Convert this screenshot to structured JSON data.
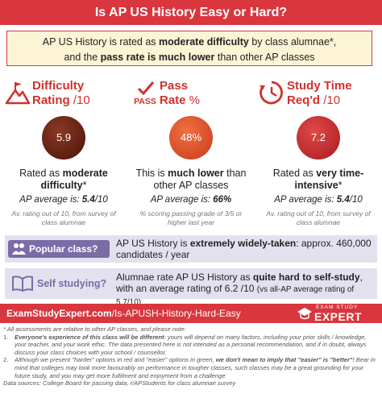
{
  "title": "Is AP US History Easy or Hard?",
  "summary": {
    "line1": [
      {
        "text": "AP US History is rated as "
      },
      {
        "text": "moderate difficulty",
        "bold": true
      },
      {
        "text": " by class alumnae*,"
      }
    ],
    "line2": [
      {
        "text": "and the "
      },
      {
        "text": "pass rate is much lower",
        "bold": true
      },
      {
        "text": " than other AP classes"
      }
    ]
  },
  "columns": [
    {
      "heading_line1": "Difficulty",
      "heading_line2": [
        {
          "text": "Rating",
          "bold": true
        },
        {
          "text": " /10"
        }
      ],
      "value": "5.9",
      "description": [
        {
          "text": "Rated as "
        },
        {
          "text": "moderate difficulty",
          "bold": true
        },
        {
          "text": "*"
        }
      ],
      "average": [
        {
          "text": "AP average is: "
        },
        {
          "text": "5.4",
          "bold": true
        },
        {
          "text": "/10"
        }
      ],
      "note": "Av. rating out of 10, from survey of class alumnae"
    },
    {
      "icon_text": "PASS",
      "heading_line1": "Pass",
      "heading_line2": [
        {
          "text": "Rate",
          "bold": true
        },
        {
          "text": " %"
        }
      ],
      "value": "48%",
      "description": [
        {
          "text": "This is "
        },
        {
          "text": "much lower",
          "bold": true
        },
        {
          "text": " than other AP classes"
        }
      ],
      "average": [
        {
          "text": "AP average is: "
        },
        {
          "text": "66%",
          "bold": true
        }
      ],
      "note": "% scoring passing grade of 3/5 or higher last year"
    },
    {
      "heading_line1": "Study Time",
      "heading_line2": [
        {
          "text": "Req'd",
          "bold": true
        },
        {
          "text": " /10"
        }
      ],
      "value": "7.2",
      "description": [
        {
          "text": "Rated as "
        },
        {
          "text": "very time-intensive",
          "bold": true
        },
        {
          "text": "*"
        }
      ],
      "average": [
        {
          "text": "AP average is: "
        },
        {
          "text": "5.4",
          "bold": true
        },
        {
          "text": "/10"
        }
      ],
      "note": "Av. rating out of 10, from survey of class alumnae"
    }
  ],
  "rows": [
    {
      "label": "Popular class?",
      "text": [
        {
          "text": "AP US History is "
        },
        {
          "text": "extremely widely-taken",
          "bold": true
        },
        {
          "text": ": approx. 460,000 candidates / year"
        }
      ]
    },
    {
      "label": "Self studying?",
      "text": [
        {
          "text": "Alumnae rate AP US History as "
        },
        {
          "text": "quite hard to self-study",
          "bold": true
        },
        {
          "text": ", with an average rating of 6.2 /10 "
        },
        {
          "text": "(vs all-AP average rating of 5.7/10)",
          "small": true
        }
      ]
    }
  ],
  "footer": {
    "url": [
      {
        "text": "ExamStudyExpert.com",
        "bold": true
      },
      {
        "text": "/Is-APUSH-History-Hard-Easy"
      }
    ],
    "logo_top": "EXAM STUDY",
    "logo_main": "EXPERT"
  },
  "notes": {
    "intro": "* All assessments are relative to other AP classes, and please note:",
    "items": [
      {
        "number": "1.",
        "text": [
          {
            "text": "Everyone's experience of this class will be different",
            "bold": true
          },
          {
            "text": ": yours will depend on many factors, including your prior skills / knowledge, your teacher, and your work ethic. The data presented here is not intended as a personal recommendation, and if in doubt, always discuss your class choices with your school / counsellor."
          }
        ]
      },
      {
        "number": "2.",
        "text": [
          {
            "text": "Although we present \"harder\" options in red and \"easier\" options in green, "
          },
          {
            "text": "we don't mean to imply that \"easier\" is \"better\"",
            "bold": true
          },
          {
            "text": "! Bear in mind that colleges may look more favourably on performance in tougher classes, such classes may be a great grounding for your future study, and you may get more fulfilment and enjoyment from a challenge"
          }
        ]
      }
    ],
    "sources": "Data sources: College Board for passing data, r/APStudents for class alumnae survey"
  }
}
